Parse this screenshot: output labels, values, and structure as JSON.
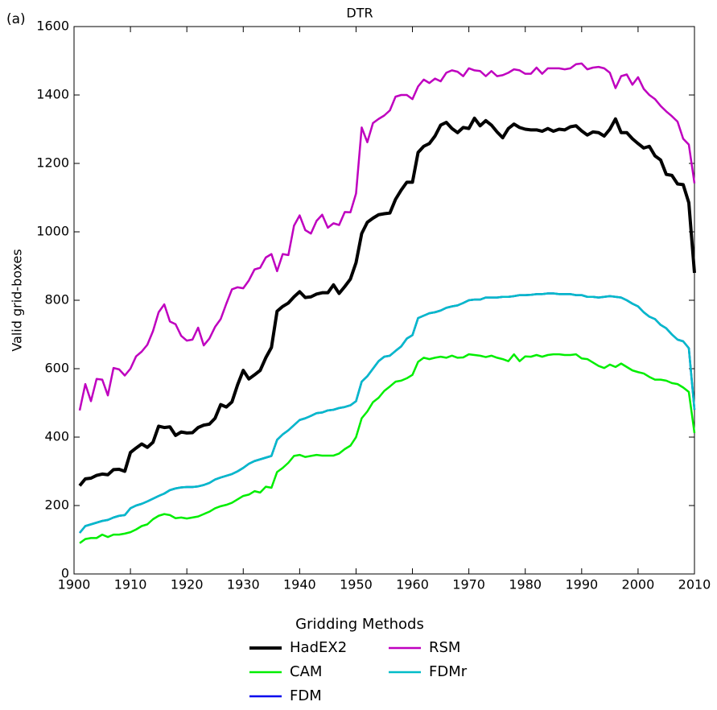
{
  "chart_data": {
    "type": "line",
    "title": "DTR",
    "annotation": "(a)",
    "y_label": "Valid grid-boxes",
    "legend_title": "Gridding Methods",
    "legend_position": "below",
    "x": [
      1901,
      1902,
      1903,
      1904,
      1905,
      1906,
      1907,
      1908,
      1909,
      1910,
      1911,
      1912,
      1913,
      1914,
      1915,
      1916,
      1917,
      1918,
      1919,
      1920,
      1921,
      1922,
      1923,
      1924,
      1925,
      1926,
      1927,
      1928,
      1929,
      1930,
      1931,
      1932,
      1933,
      1934,
      1935,
      1936,
      1937,
      1938,
      1939,
      1940,
      1941,
      1942,
      1943,
      1944,
      1945,
      1946,
      1947,
      1948,
      1949,
      1950,
      1951,
      1952,
      1953,
      1954,
      1955,
      1956,
      1957,
      1958,
      1959,
      1960,
      1961,
      1962,
      1963,
      1964,
      1965,
      1966,
      1967,
      1968,
      1969,
      1970,
      1971,
      1972,
      1973,
      1974,
      1975,
      1976,
      1977,
      1978,
      1979,
      1980,
      1981,
      1982,
      1983,
      1984,
      1985,
      1986,
      1987,
      1988,
      1989,
      1990,
      1991,
      1992,
      1993,
      1994,
      1995,
      1996,
      1997,
      1998,
      1999,
      2000,
      2001,
      2002,
      2003,
      2004,
      2005,
      2006,
      2007,
      2008,
      2009,
      2010
    ],
    "series": [
      {
        "name": "HadEX2",
        "color": "#000000",
        "width": 4,
        "values": [
          258,
          278,
          280,
          288,
          292,
          290,
          305,
          306,
          300,
          355,
          368,
          380,
          370,
          385,
          432,
          428,
          430,
          405,
          415,
          412,
          413,
          428,
          435,
          438,
          455,
          495,
          488,
          503,
          553,
          595,
          570,
          582,
          595,
          632,
          662,
          768,
          782,
          792,
          810,
          825,
          808,
          810,
          818,
          822,
          822,
          845,
          820,
          840,
          862,
          910,
          995,
          1028,
          1040,
          1050,
          1053,
          1055,
          1095,
          1122,
          1145,
          1145,
          1232,
          1250,
          1258,
          1280,
          1312,
          1320,
          1302,
          1290,
          1305,
          1302,
          1332,
          1310,
          1325,
          1312,
          1292,
          1275,
          1302,
          1315,
          1305,
          1300,
          1298,
          1298,
          1294,
          1302,
          1294,
          1300,
          1298,
          1307,
          1310,
          1295,
          1283,
          1292,
          1290,
          1280,
          1300,
          1330,
          1290,
          1290,
          1272,
          1258,
          1245,
          1250,
          1222,
          1210,
          1168,
          1165,
          1140,
          1138,
          1085,
          880
        ]
      },
      {
        "name": "CAM",
        "color": "#00ee00",
        "width": 2.5,
        "values": [
          90,
          102,
          105,
          105,
          115,
          108,
          115,
          115,
          118,
          122,
          130,
          140,
          145,
          160,
          170,
          175,
          172,
          163,
          165,
          162,
          165,
          168,
          175,
          182,
          192,
          198,
          202,
          208,
          218,
          228,
          232,
          242,
          238,
          255,
          252,
          298,
          310,
          325,
          345,
          348,
          342,
          345,
          348,
          346,
          346,
          346,
          352,
          365,
          375,
          400,
          455,
          475,
          502,
          515,
          535,
          548,
          562,
          565,
          572,
          582,
          620,
          632,
          628,
          632,
          635,
          632,
          638,
          632,
          633,
          642,
          640,
          638,
          634,
          638,
          632,
          628,
          622,
          642,
          622,
          636,
          635,
          640,
          635,
          640,
          642,
          642,
          640,
          640,
          642,
          630,
          628,
          618,
          608,
          602,
          612,
          605,
          615,
          605,
          595,
          590,
          586,
          576,
          568,
          568,
          565,
          558,
          555,
          545,
          532,
          412
        ]
      },
      {
        "name": "FDM",
        "color": "#0000ee",
        "width": 2.5,
        "values": [
          120,
          140,
          145,
          150,
          155,
          158,
          165,
          170,
          172,
          192,
          200,
          205,
          212,
          220,
          228,
          235,
          245,
          250,
          253,
          254,
          254,
          256,
          260,
          266,
          276,
          282,
          287,
          292,
          300,
          310,
          322,
          330,
          335,
          340,
          345,
          392,
          408,
          420,
          435,
          450,
          455,
          462,
          470,
          472,
          478,
          480,
          485,
          488,
          493,
          505,
          562,
          578,
          600,
          622,
          635,
          638,
          652,
          665,
          688,
          698,
          748,
          755,
          762,
          765,
          770,
          778,
          782,
          785,
          792,
          800,
          802,
          802,
          808,
          808,
          808,
          810,
          810,
          812,
          815,
          815,
          816,
          818,
          818,
          820,
          820,
          818,
          818,
          818,
          815,
          815,
          810,
          810,
          808,
          810,
          812,
          810,
          808,
          800,
          790,
          782,
          765,
          752,
          745,
          728,
          718,
          700,
          685,
          680,
          660,
          480
        ]
      },
      {
        "name": "RSM",
        "color": "#bf00bf",
        "width": 2.5,
        "values": [
          478,
          555,
          505,
          570,
          568,
          522,
          602,
          598,
          580,
          600,
          636,
          650,
          670,
          710,
          765,
          788,
          738,
          730,
          696,
          682,
          685,
          720,
          668,
          688,
          722,
          745,
          790,
          832,
          838,
          835,
          858,
          890,
          895,
          925,
          935,
          885,
          935,
          932,
          1018,
          1048,
          1005,
          995,
          1032,
          1050,
          1012,
          1025,
          1020,
          1058,
          1057,
          1112,
          1305,
          1262,
          1318,
          1330,
          1340,
          1355,
          1395,
          1400,
          1400,
          1388,
          1425,
          1445,
          1435,
          1448,
          1440,
          1465,
          1472,
          1468,
          1455,
          1478,
          1472,
          1470,
          1455,
          1470,
          1455,
          1458,
          1465,
          1475,
          1472,
          1462,
          1462,
          1480,
          1462,
          1478,
          1478,
          1478,
          1475,
          1478,
          1490,
          1492,
          1475,
          1480,
          1482,
          1478,
          1465,
          1420,
          1455,
          1460,
          1430,
          1452,
          1418,
          1400,
          1388,
          1368,
          1352,
          1338,
          1322,
          1272,
          1255,
          1142
        ]
      },
      {
        "name": "FDMr",
        "color": "#00bcc8",
        "width": 2.5,
        "values": [
          120,
          140,
          145,
          150,
          155,
          158,
          165,
          170,
          172,
          192,
          200,
          205,
          212,
          220,
          228,
          235,
          245,
          250,
          253,
          254,
          254,
          256,
          260,
          266,
          276,
          282,
          287,
          292,
          300,
          310,
          322,
          330,
          335,
          340,
          345,
          392,
          408,
          420,
          435,
          450,
          455,
          462,
          470,
          472,
          478,
          480,
          485,
          488,
          493,
          505,
          562,
          578,
          600,
          622,
          635,
          638,
          652,
          665,
          688,
          698,
          748,
          755,
          762,
          765,
          770,
          778,
          782,
          785,
          792,
          800,
          802,
          802,
          808,
          808,
          808,
          810,
          810,
          812,
          815,
          815,
          816,
          818,
          818,
          820,
          820,
          818,
          818,
          818,
          815,
          815,
          810,
          810,
          808,
          810,
          812,
          810,
          808,
          800,
          790,
          782,
          765,
          752,
          745,
          728,
          718,
          700,
          685,
          680,
          660,
          480
        ]
      }
    ],
    "xlim": [
      1900,
      2010
    ],
    "xticks": [
      1900,
      1910,
      1920,
      1930,
      1940,
      1950,
      1960,
      1970,
      1980,
      1990,
      2000,
      2010
    ],
    "ylim": [
      0,
      1600
    ],
    "yticks": [
      0,
      200,
      400,
      600,
      800,
      1000,
      1200,
      1400,
      1600
    ],
    "grid": false
  }
}
